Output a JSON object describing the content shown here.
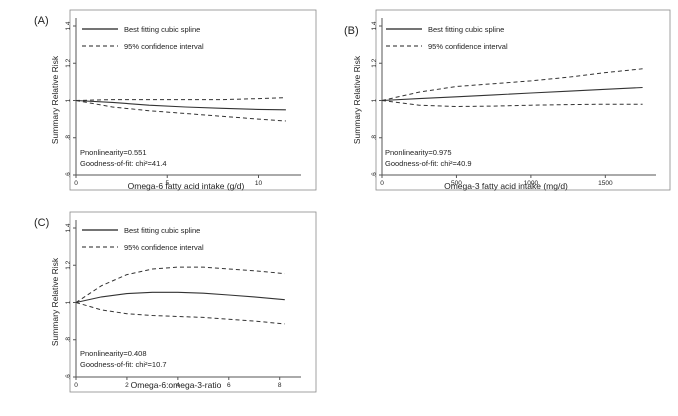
{
  "chart_data": [
    {
      "type": "line",
      "panel_label": "(A)",
      "xlabel": "Omega-6 fatty acid intake (g/d)",
      "ylabel": "Summary Relative Risk",
      "xlim": [
        0,
        12
      ],
      "ylim": [
        0.6,
        1.4
      ],
      "xticks": [
        0,
        5,
        10
      ],
      "yticks": [
        0.6,
        0.8,
        1,
        1.2,
        1.4
      ],
      "series": [
        {
          "name": "Best fitting cubic spline",
          "style": "solid",
          "x": [
            0,
            2,
            4,
            6,
            8,
            10,
            11.5
          ],
          "y": [
            1.0,
            0.99,
            0.975,
            0.965,
            0.958,
            0.952,
            0.95
          ]
        },
        {
          "name": "95% confidence interval",
          "style": "dashed",
          "x": [
            0,
            2,
            4,
            6,
            8,
            10,
            11.5
          ],
          "y": [
            1.0,
            1.005,
            1.005,
            1.005,
            1.005,
            1.01,
            1.015
          ]
        },
        {
          "name": "",
          "style": "dashed",
          "x": [
            0,
            2,
            4,
            6,
            8,
            10,
            11.5
          ],
          "y": [
            1.0,
            0.965,
            0.945,
            0.93,
            0.915,
            0.9,
            0.89
          ]
        }
      ],
      "stats": [
        "Pnonlinearity=0.551",
        "Goodness-of-fit: chi²=41.4"
      ]
    },
    {
      "type": "line",
      "panel_label": "(B)",
      "xlabel": "Omega-3 fatty acid intake (mg/d)",
      "ylabel": "Summary Relative Risk",
      "xlim": [
        0,
        1800
      ],
      "ylim": [
        0.6,
        1.4
      ],
      "xticks": [
        0,
        500,
        1000,
        1500
      ],
      "yticks": [
        0.6,
        0.8,
        1,
        1.2,
        1.4
      ],
      "series": [
        {
          "name": "Best fitting cubic spline",
          "style": "solid",
          "x": [
            0,
            250,
            500,
            750,
            1000,
            1250,
            1500,
            1750
          ],
          "y": [
            1.0,
            1.01,
            1.02,
            1.03,
            1.04,
            1.05,
            1.06,
            1.07
          ]
        },
        {
          "name": "95% confidence interval",
          "style": "dashed",
          "x": [
            0,
            250,
            500,
            750,
            1000,
            1250,
            1500,
            1750
          ],
          "y": [
            1.0,
            1.045,
            1.075,
            1.09,
            1.105,
            1.125,
            1.15,
            1.17
          ]
        },
        {
          "name": "",
          "style": "dashed",
          "x": [
            0,
            250,
            500,
            750,
            1000,
            1250,
            1500,
            1750
          ],
          "y": [
            1.0,
            0.975,
            0.968,
            0.97,
            0.975,
            0.978,
            0.98,
            0.98
          ]
        }
      ],
      "stats": [
        "Pnonlinearity=0.975",
        "Goodness-of-fit: chi²=40.9"
      ]
    },
    {
      "type": "line",
      "panel_label": "(C)",
      "xlabel": "Omega-6:omega-3-ratio",
      "ylabel": "Summary Relative Risk",
      "xlim": [
        0,
        8.6
      ],
      "ylim": [
        0.6,
        1.4
      ],
      "xticks": [
        0,
        2,
        4,
        6,
        8
      ],
      "yticks": [
        0.6,
        0.8,
        1,
        1.2,
        1.4
      ],
      "series": [
        {
          "name": "Best fitting cubic spline",
          "style": "solid",
          "x": [
            0,
            1,
            2,
            3,
            4,
            5,
            6,
            7,
            8.2
          ],
          "y": [
            1.0,
            1.03,
            1.048,
            1.055,
            1.055,
            1.05,
            1.04,
            1.03,
            1.015
          ]
        },
        {
          "name": "95% confidence interval",
          "style": "dashed",
          "x": [
            0,
            1,
            2,
            3,
            4,
            5,
            6,
            7,
            8.2
          ],
          "y": [
            1.0,
            1.09,
            1.15,
            1.18,
            1.19,
            1.19,
            1.18,
            1.17,
            1.155
          ]
        },
        {
          "name": "",
          "style": "dashed",
          "x": [
            0,
            1,
            2,
            3,
            4,
            5,
            6,
            7,
            8.2
          ],
          "y": [
            1.0,
            0.96,
            0.94,
            0.93,
            0.925,
            0.92,
            0.91,
            0.9,
            0.885
          ]
        }
      ],
      "stats": [
        "Pnonlinearity=0.408",
        "Goodness-of-fit: chi²=10.7"
      ]
    }
  ]
}
